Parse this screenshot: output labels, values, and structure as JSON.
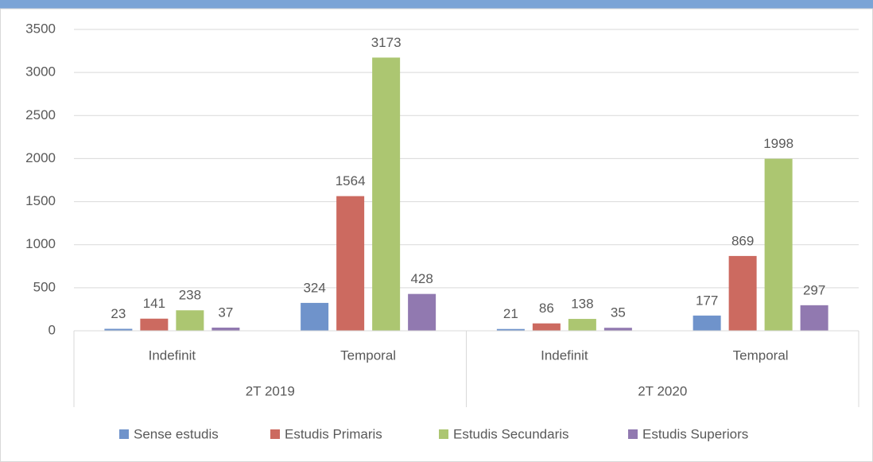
{
  "chart_data": {
    "type": "bar",
    "categories": [
      "Indefinit",
      "Temporal",
      "Indefinit",
      "Temporal"
    ],
    "groups": [
      "2T 2019",
      "2T 2020"
    ],
    "series": [
      {
        "name": "Sense estudis",
        "color": "#6f93cb",
        "values": [
          23,
          324,
          21,
          177
        ]
      },
      {
        "name": "Estudis Primaris",
        "color": "#cc6a60",
        "values": [
          141,
          1564,
          86,
          869
        ]
      },
      {
        "name": "Estudis Secundaris",
        "color": "#acc671",
        "values": [
          238,
          3173,
          138,
          1998
        ]
      },
      {
        "name": "Estudis Superiors",
        "color": "#9179b0",
        "values": [
          37,
          428,
          35,
          297
        ]
      }
    ],
    "ylim": [
      0,
      3500
    ],
    "yticks": [
      0,
      500,
      1000,
      1500,
      2000,
      2500,
      3000,
      3500
    ],
    "grid": true,
    "legend": "bottom"
  }
}
